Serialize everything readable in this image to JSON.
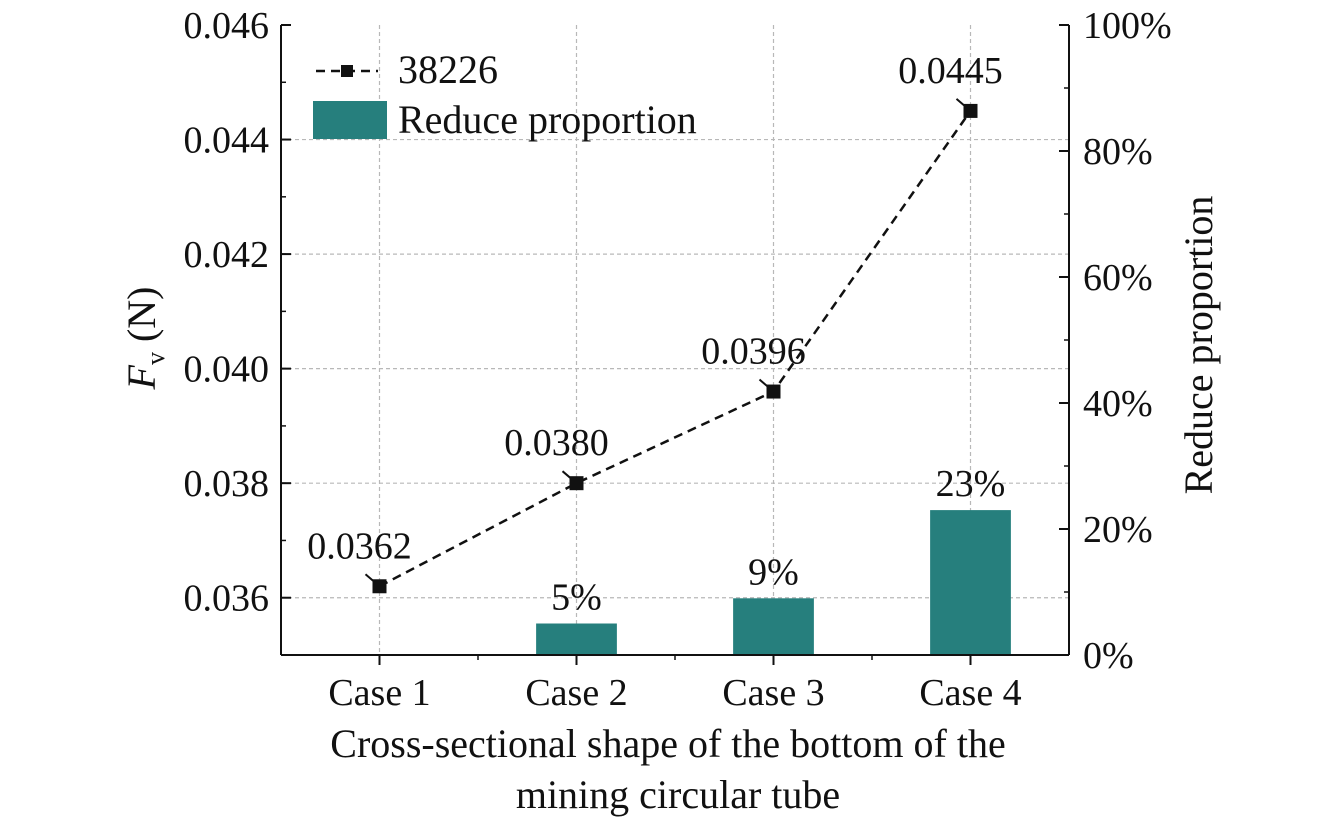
{
  "chart_data": {
    "type": "bar+line",
    "categories": [
      "Case 1",
      "Case 2",
      "Case 3",
      "Case 4"
    ],
    "series": [
      {
        "name": "38226",
        "kind": "line",
        "axis": "left",
        "values": [
          0.0362,
          0.038,
          0.0396,
          0.0445
        ],
        "labels": [
          "0.0362",
          "0.0380",
          "0.0396",
          "0.0445"
        ],
        "color": "#111111"
      },
      {
        "name": "Reduce proportion",
        "kind": "bar",
        "axis": "right",
        "values": [
          0,
          5,
          9,
          23
        ],
        "labels": [
          "",
          "5%",
          "9%",
          "23%"
        ],
        "color": "#267f7d"
      }
    ],
    "y_left": {
      "label_symbol": "F",
      "label_subscript": "v",
      "label_unit": " (N)",
      "lim": [
        0.035,
        0.046
      ],
      "ticks": [
        0.036,
        0.038,
        0.04,
        0.042,
        0.044,
        0.046
      ],
      "tick_labels": [
        "0.036",
        "0.038",
        "0.040",
        "0.042",
        "0.044",
        "0.046"
      ]
    },
    "y_right": {
      "label": "Reduce proportion",
      "lim": [
        0,
        100
      ],
      "ticks": [
        0,
        20,
        40,
        60,
        80,
        100
      ],
      "tick_labels": [
        "0%",
        "20%",
        "40%",
        "60%",
        "80%",
        "100%"
      ]
    },
    "xlabel_lines": [
      "Cross-sectional shape of the bottom of the",
      "mining circular tube"
    ],
    "grid": true,
    "legend_position": "top-left"
  }
}
